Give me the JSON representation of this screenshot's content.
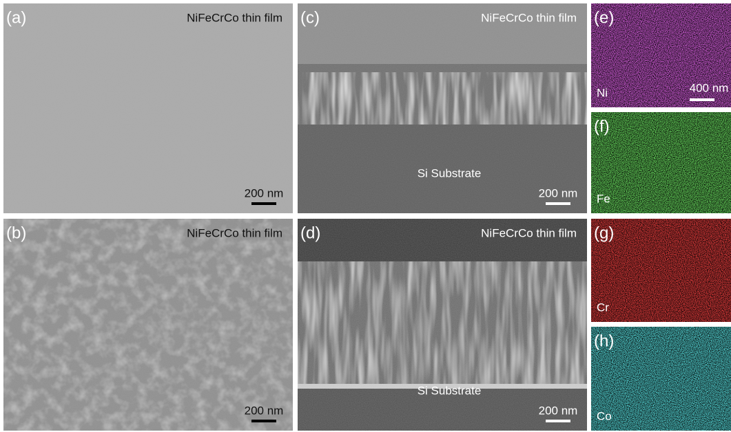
{
  "panels": [
    {
      "label": "(a)",
      "caption": "NiFeCrCo thin film",
      "scale_bar": "200 nm"
    },
    {
      "label": "(b)",
      "caption": "NiFeCrCo thin film",
      "scale_bar": "200 nm"
    },
    {
      "label": "(c)",
      "caption": "NiFeCrCo thin film",
      "substrate": "Si Substrate",
      "scale_bar": "200 nm"
    },
    {
      "label": "(d)",
      "caption": "NiFeCrCo thin film",
      "substrate": "Si Substrate",
      "scale_bar": "200 nm"
    }
  ],
  "maps": [
    {
      "label": "(e)",
      "element": "Ni",
      "scale_bar": "400 nm"
    },
    {
      "label": "(f)",
      "element": "Fe"
    },
    {
      "label": "(g)",
      "element": "Cr"
    },
    {
      "label": "(h)",
      "element": "Co"
    }
  ]
}
